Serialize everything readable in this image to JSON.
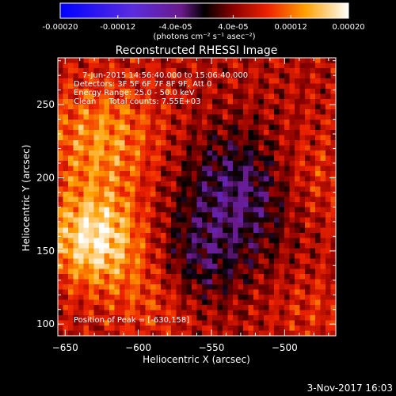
{
  "chart_data": {
    "type": "heatmap",
    "title": "Reconstructed RHESSI Image",
    "xlabel": "Heliocentric X (arcsec)",
    "ylabel": "Heliocentric Y (arcsec)",
    "xlim": [
      -655,
      -465
    ],
    "ylim": [
      92,
      282
    ],
    "x_ticks": [
      -650,
      -600,
      -550,
      -500
    ],
    "y_ticks": [
      100,
      150,
      200,
      250
    ],
    "colorbar": {
      "range": [
        -0.0002,
        0.0002
      ],
      "tick_labels": [
        "-0.00020",
        "-0.00012",
        "-4.0e-05",
        "4.0e-05",
        "0.00012",
        "0.00020"
      ],
      "tick_values": [
        -0.0002,
        -0.00012,
        -4e-05,
        4e-05,
        0.00012,
        0.0002
      ],
      "unit_label": "(photons cm⁻² s⁻¹ asec⁻²)"
    },
    "annotations": [
      "7-Jun-2015 14:56:40.000 to 15:06:40.000",
      "Detectors: 3F 5F 6F 7F 8F 9F, Att 0",
      "Energy Range: 25.0 - 50.0 keV",
      "Clean     Total counts: 7.55E+03",
      "Position of Peak = [-630,158]"
    ],
    "peak": [
      -630,
      158
    ],
    "grid": false
  },
  "footer_date": "3-Nov-2017 16:03"
}
